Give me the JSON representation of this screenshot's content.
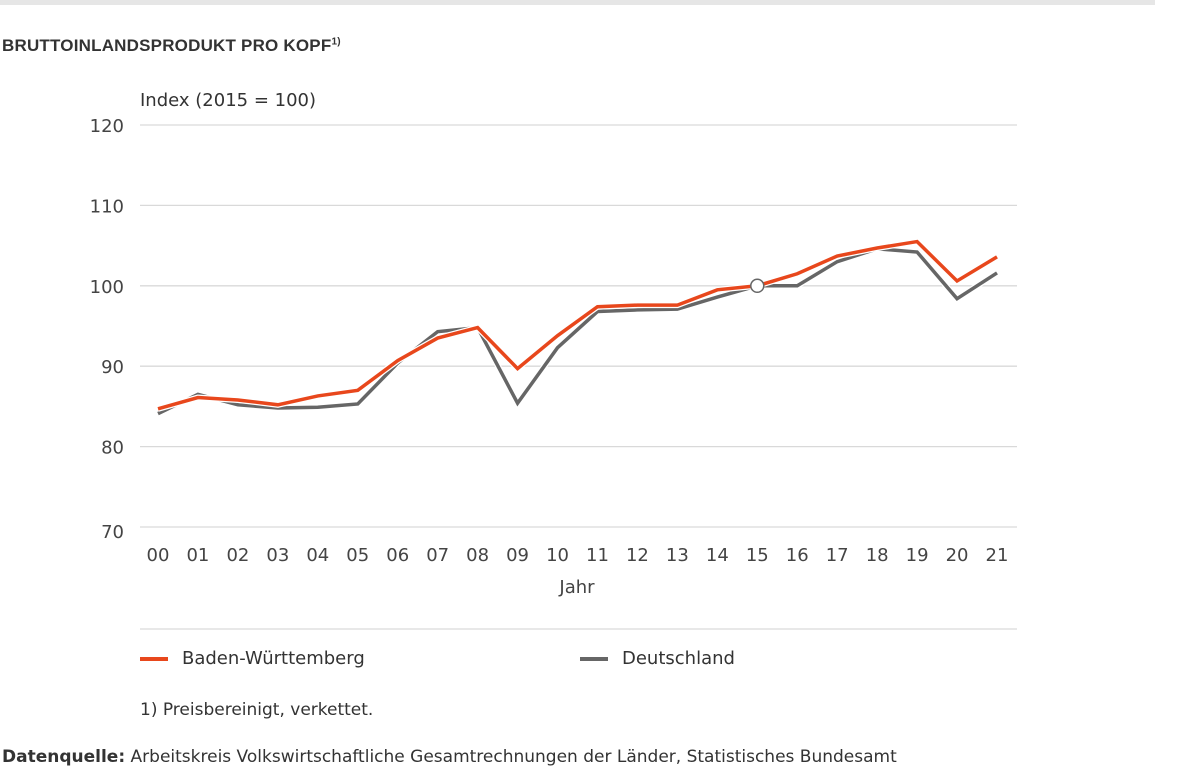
{
  "title": "BRUTTOINLANDSPRODUKT PRO KOPF",
  "title_sup": "1)",
  "footnote": "1) Preisbereinigt, verkettet.",
  "source_label": "Datenquelle:",
  "source_text": " Arbeitskreis Volkswirtschaftliche Gesamtrechnungen der Länder, Statistisches Bundesamt",
  "chart_data": {
    "type": "line",
    "ylabel": "Index (2015 = 100)",
    "xlabel": "Jahr",
    "ylim": [
      70,
      120
    ],
    "yticks": [
      "70",
      "80",
      "90",
      "100",
      "110",
      "120"
    ],
    "grid": true,
    "legend_position": "bottom",
    "categories": [
      "00",
      "01",
      "02",
      "03",
      "04",
      "05",
      "06",
      "07",
      "08",
      "09",
      "10",
      "11",
      "12",
      "13",
      "14",
      "15",
      "16",
      "17",
      "18",
      "19",
      "20",
      "21"
    ],
    "series": [
      {
        "name": "Baden-Württemberg",
        "color": "#e8471c",
        "values": [
          84.7,
          86.1,
          85.8,
          85.2,
          86.3,
          87.0,
          90.7,
          93.5,
          94.8,
          89.7,
          93.8,
          97.4,
          97.6,
          97.6,
          99.5,
          100,
          101.5,
          103.7,
          104.7,
          105.5,
          100.6,
          103.6
        ]
      },
      {
        "name": "Deutschland",
        "color": "#666666",
        "values": [
          84.1,
          86.5,
          85.2,
          84.8,
          84.9,
          85.3,
          90.4,
          94.3,
          94.8,
          85.4,
          92.3,
          96.8,
          97.0,
          97.1,
          98.6,
          100,
          100,
          103.0,
          104.6,
          104.2,
          98.4,
          101.6
        ]
      }
    ],
    "marker": {
      "category": "15",
      "value": 100
    }
  }
}
